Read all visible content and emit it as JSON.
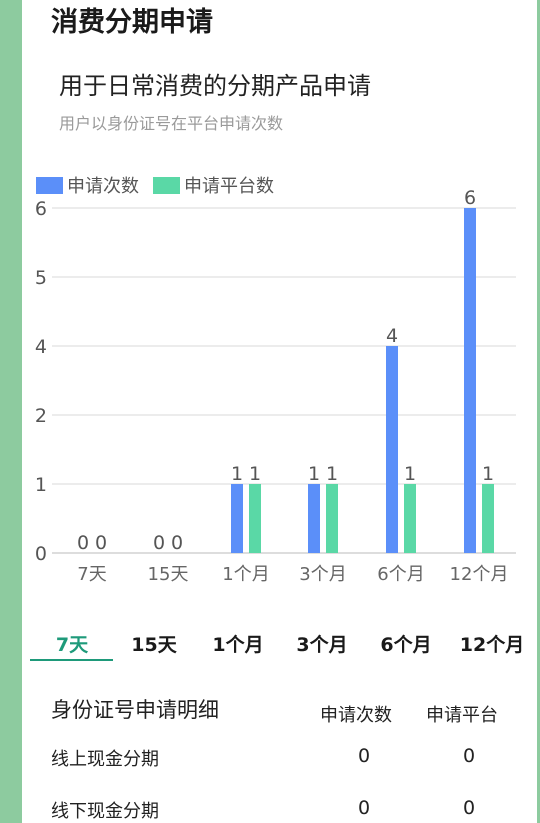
{
  "page_title": "消费分期申请",
  "card": {
    "title": "用于日常消费的分期产品申请",
    "subtitle": "用户以身份证号在平台申请次数"
  },
  "colors": {
    "series_1": "#5b8ff9",
    "series_2": "#5ad8a6",
    "accent": "#1e9a7a",
    "strip": "#8dcb9f"
  },
  "chart_data": {
    "type": "bar",
    "categories": [
      "7天",
      "15天",
      "1个月",
      "3个月",
      "6个月",
      "12个月"
    ],
    "series": [
      {
        "name": "申请次数",
        "values": [
          0,
          0,
          1,
          1,
          4,
          6
        ]
      },
      {
        "name": "申请平台数",
        "values": [
          0,
          0,
          1,
          1,
          1,
          1
        ]
      }
    ],
    "yticks": [
      "0",
      "1",
      "2",
      "4",
      "5",
      "6"
    ],
    "ytick_values": [
      0,
      1,
      2,
      4,
      5,
      6
    ],
    "legend": "top-left",
    "grid": true
  },
  "tabs": [
    "7天",
    "15天",
    "1个月",
    "3个月",
    "6个月",
    "12个月"
  ],
  "active_tab": "7天",
  "detail": {
    "title": "身份证号申请明细",
    "col_count": "申请次数",
    "col_platform": "申请平台",
    "rows": [
      {
        "label": "线上现金分期",
        "count": "0",
        "platform": "0"
      },
      {
        "label": "线下现金分期",
        "count": "0",
        "platform": "0"
      }
    ]
  }
}
